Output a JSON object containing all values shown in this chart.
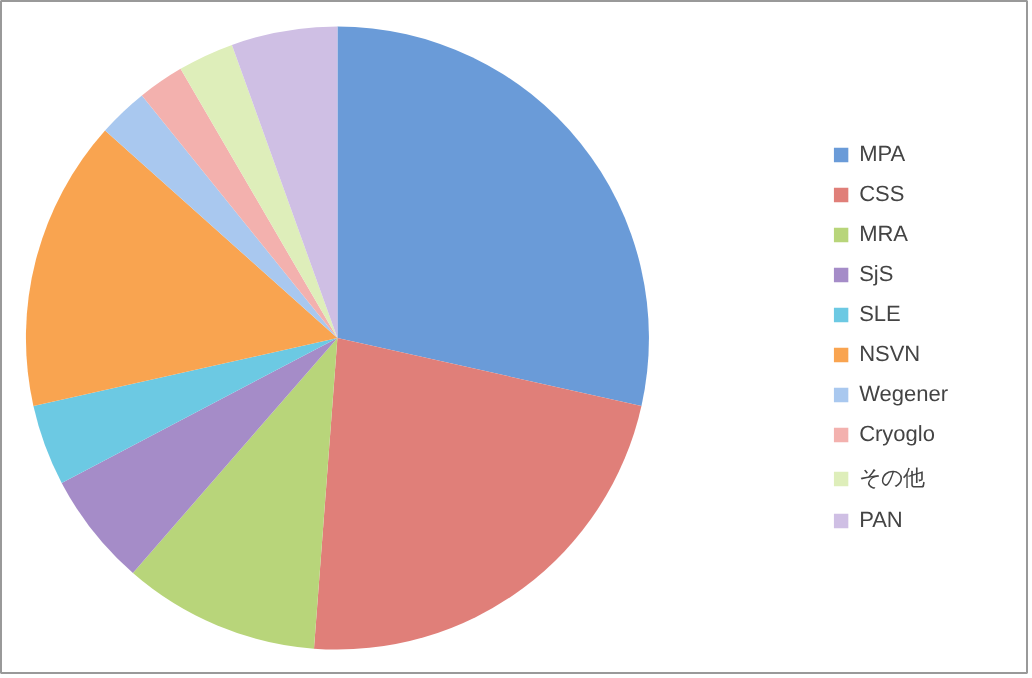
{
  "chart_data": {
    "type": "pie",
    "categories": [
      "MPA",
      "CSS",
      "MRA",
      "SjS",
      "SLE",
      "NSVN",
      "Wegener",
      "Cryoglo",
      "その他",
      "PAN"
    ],
    "values": [
      28.5,
      22.7,
      10.2,
      5.9,
      4.2,
      15.1,
      2.6,
      2.4,
      2.9,
      5.5
    ],
    "colors": [
      "#6a9bd8",
      "#e07f79",
      "#b8d57a",
      "#a58cc8",
      "#6cc9e3",
      "#f9a450",
      "#a9c8ef",
      "#f3b1ae",
      "#deeeba",
      "#cfbfe4"
    ],
    "legend": "right"
  }
}
